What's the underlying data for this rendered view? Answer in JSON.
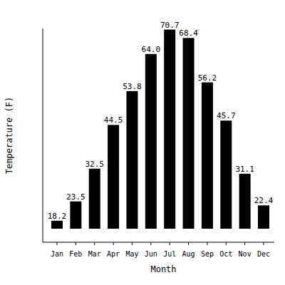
{
  "chart_data": {
    "type": "bar",
    "x_label": "Month",
    "y_label": "Temperature (F)",
    "categories": [
      "Jan",
      "Feb",
      "Mar",
      "Apr",
      "May",
      "Jun",
      "Jul",
      "Aug",
      "Sep",
      "Oct",
      "Nov",
      "Dec"
    ],
    "values": [
      18.2,
      23.5,
      32.5,
      44.5,
      53.8,
      64.0,
      70.7,
      68.4,
      56.2,
      45.7,
      31.1,
      22.4
    ],
    "value_labels": [
      "18.2",
      "23.5",
      "32.5",
      "44.5",
      "53.8",
      "64.0",
      "70.7",
      "68.4",
      "56.2",
      "45.7",
      "31.1",
      "22.4"
    ],
    "color": "#000000",
    "ylim": [
      16,
      71
    ],
    "grid": false,
    "data_labels": true,
    "tick_labels": "x"
  }
}
